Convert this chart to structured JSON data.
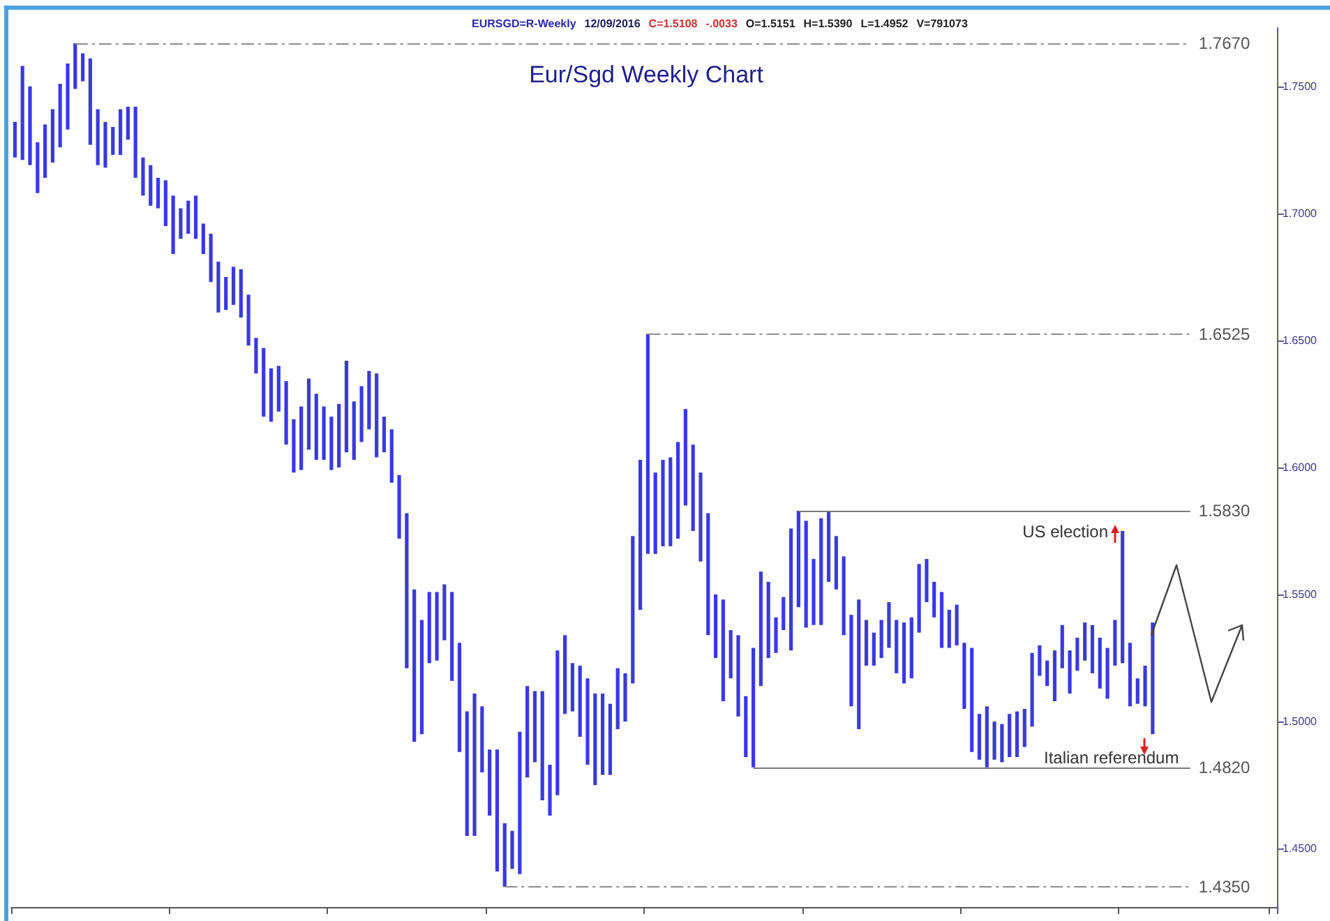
{
  "chart_data": {
    "type": "bar",
    "title": "Eur/Sgd Weekly Chart",
    "subtitle": "EURSGD=R-Weekly  12/09/2016  C=1.5108  -.0033  O=1.5151  H=1.5390  L=1.4952  V=791073",
    "categories": [
      null,
      null,
      null,
      null,
      null,
      null,
      null,
      null,
      null,
      null,
      null,
      null,
      null,
      null,
      null,
      null,
      null,
      null,
      null,
      null,
      null,
      null,
      null,
      null,
      null,
      null,
      null,
      null,
      null,
      null,
      null,
      null,
      null,
      null,
      null,
      null,
      null,
      null,
      null,
      null,
      null,
      null,
      null,
      null,
      null,
      null,
      null,
      null,
      null,
      null,
      null,
      null,
      null,
      null,
      null,
      null,
      null,
      null,
      null,
      null,
      null,
      null,
      null,
      null,
      null,
      null,
      null,
      null,
      null,
      null,
      null,
      null,
      null,
      null,
      null,
      null,
      null,
      null,
      null,
      null,
      null,
      null,
      null,
      null,
      null,
      null,
      null,
      null,
      null,
      null,
      null,
      null,
      null,
      null,
      null,
      null,
      null,
      null,
      null,
      null,
      null,
      null,
      null,
      null,
      null,
      null,
      null,
      null,
      null,
      null,
      null,
      null,
      null,
      null,
      null,
      null,
      null,
      null,
      null,
      null,
      null,
      null,
      null,
      null,
      null,
      null,
      null,
      null,
      null,
      null,
      null,
      null,
      null,
      null,
      null,
      null,
      null,
      null,
      null,
      null,
      null,
      null,
      null,
      null,
      null,
      null,
      null,
      null,
      null,
      null,
      null,
      null,
      null,
      null,
      null,
      null,
      null,
      null,
      null,
      null,
      null,
      null,
      null,
      null,
      null,
      null,
      null,
      null
    ],
    "base": [
      1.722,
      1.721,
      1.719,
      1.708,
      1.714,
      1.72,
      1.726,
      1.733,
      1.749,
      1.752,
      1.727,
      1.719,
      1.718,
      1.723,
      1.723,
      1.729,
      1.714,
      1.707,
      1.703,
      1.702,
      1.695,
      1.684,
      1.69,
      1.692,
      1.69,
      1.684,
      1.673,
      1.661,
      1.662,
      1.664,
      1.659,
      1.648,
      1.637,
      1.62,
      1.618,
      1.622,
      1.609,
      1.598,
      1.599,
      1.607,
      1.603,
      1.603,
      1.599,
      1.6,
      1.606,
      1.603,
      1.61,
      1.615,
      1.604,
      1.606,
      1.594,
      1.572,
      1.521,
      1.492,
      1.495,
      1.523,
      1.524,
      1.532,
      1.516,
      1.488,
      1.455,
      1.455,
      1.48,
      1.463,
      1.441,
      1.435,
      1.442,
      1.44,
      1.478,
      1.484,
      1.469,
      1.463,
      1.471,
      1.503,
      1.504,
      1.494,
      1.483,
      1.475,
      1.479,
      1.479,
      1.497,
      1.5,
      1.515,
      1.544,
      1.566,
      1.566,
      1.569,
      1.569,
      1.572,
      1.585,
      1.575,
      1.563,
      1.534,
      1.525,
      1.508,
      1.517,
      1.502,
      1.486,
      1.482,
      1.514,
      1.525,
      1.527,
      1.536,
      1.528,
      1.545,
      1.537,
      1.538,
      1.538,
      1.555,
      1.552,
      1.534,
      1.506,
      1.497,
      1.522,
      1.522,
      1.525,
      1.529,
      1.519,
      1.515,
      1.517,
      1.535,
      1.547,
      1.541,
      1.529,
      1.529,
      1.53,
      1.505,
      1.488,
      1.485,
      1.482,
      1.485,
      1.484,
      1.486,
      1.486,
      1.49,
      1.498,
      1.518,
      1.514,
      1.508,
      1.521,
      1.511,
      1.52,
      1.524,
      1.519,
      1.513,
      1.509,
      1.522,
      1.523,
      1.506,
      1.507,
      1.506,
      1.495,
      null,
      null,
      null,
      null,
      null,
      null,
      null,
      null,
      null,
      null,
      null,
      null,
      null,
      null,
      null,
      null
    ],
    "values": [
      0.014,
      0.037,
      0.031,
      0.02,
      0.021,
      0.021,
      0.025,
      0.026,
      0.018,
      0.011,
      0.034,
      0.022,
      0.018,
      0.011,
      0.018,
      0.013,
      0.028,
      0.015,
      0.016,
      0.012,
      0.018,
      0.023,
      0.012,
      0.013,
      0.017,
      0.012,
      0.019,
      0.02,
      0.013,
      0.015,
      0.019,
      0.02,
      0.014,
      0.027,
      0.021,
      0.018,
      0.025,
      0.021,
      0.025,
      0.028,
      0.026,
      0.021,
      0.021,
      0.025,
      0.036,
      0.023,
      0.022,
      0.023,
      0.033,
      0.014,
      0.021,
      0.025,
      0.061,
      0.06,
      0.045,
      0.028,
      0.027,
      0.022,
      0.035,
      0.043,
      0.049,
      0.056,
      0.026,
      0.026,
      0.048,
      0.025,
      0.015,
      0.056,
      0.036,
      0.028,
      0.043,
      0.02,
      0.057,
      0.031,
      0.019,
      0.028,
      0.034,
      0.036,
      0.032,
      0.028,
      0.024,
      0.019,
      0.058,
      0.059,
      0.0865,
      0.032,
      0.034,
      0.035,
      0.038,
      0.038,
      0.034,
      0.035,
      0.048,
      0.025,
      0.04,
      0.019,
      0.032,
      0.024,
      0.047,
      0.045,
      0.03,
      0.014,
      0.013,
      0.048,
      0.038,
      0.042,
      0.026,
      0.042,
      0.028,
      0.021,
      0.031,
      0.036,
      0.051,
      0.018,
      0.013,
      0.015,
      0.018,
      0.021,
      0.024,
      0.024,
      0.027,
      0.017,
      0.014,
      0.022,
      0.015,
      0.016,
      0.026,
      0.041,
      0.018,
      0.024,
      0.015,
      0.015,
      0.017,
      0.018,
      0.015,
      0.029,
      0.012,
      0.01,
      0.02,
      0.017,
      0.017,
      0.013,
      0.015,
      0.019,
      0.02,
      0.02,
      0.018,
      0.052,
      0.025,
      0.01,
      0.016,
      0.044,
      null,
      null,
      null,
      null,
      null,
      null,
      null,
      null,
      null,
      null,
      null,
      null,
      null,
      null,
      null,
      null
    ],
    "color": "#3a3ae0",
    "ylim": [
      1.427,
      1.773
    ],
    "yticks": [
      {
        "value": 1.45,
        "label": "1.4500"
      },
      {
        "value": 1.5,
        "label": "1.5000"
      },
      {
        "value": 1.55,
        "label": "1.5500"
      },
      {
        "value": 1.6,
        "label": "1.6000"
      },
      {
        "value": 1.65,
        "label": "1.6500"
      },
      {
        "value": 1.7,
        "label": "1.7000"
      },
      {
        "value": 1.75,
        "label": "1.7500"
      }
    ],
    "tick_labels": "y",
    "grid": false,
    "ref_lines": [
      {
        "axis": "y",
        "value": 1.767,
        "label": "1.7670",
        "color": "#8c8c8c",
        "line_style": "dashed"
      },
      {
        "axis": "y",
        "value": 1.6525,
        "label": "1.6525",
        "color": "#8c8c8c",
        "line_style": "dashed"
      },
      {
        "axis": "y",
        "value": 1.583,
        "label": "1.5830",
        "color": "#7a7a7a",
        "line_style": "solid"
      },
      {
        "axis": "y",
        "value": 1.482,
        "label": "1.4820",
        "color": "#7a7a7a",
        "line_style": "solid"
      },
      {
        "axis": "y",
        "value": 1.435,
        "label": "1.4350",
        "color": "#8c8c8c",
        "line_style": "dashed"
      }
    ],
    "annotations": [
      "US election",
      "Italian referendum"
    ]
  }
}
